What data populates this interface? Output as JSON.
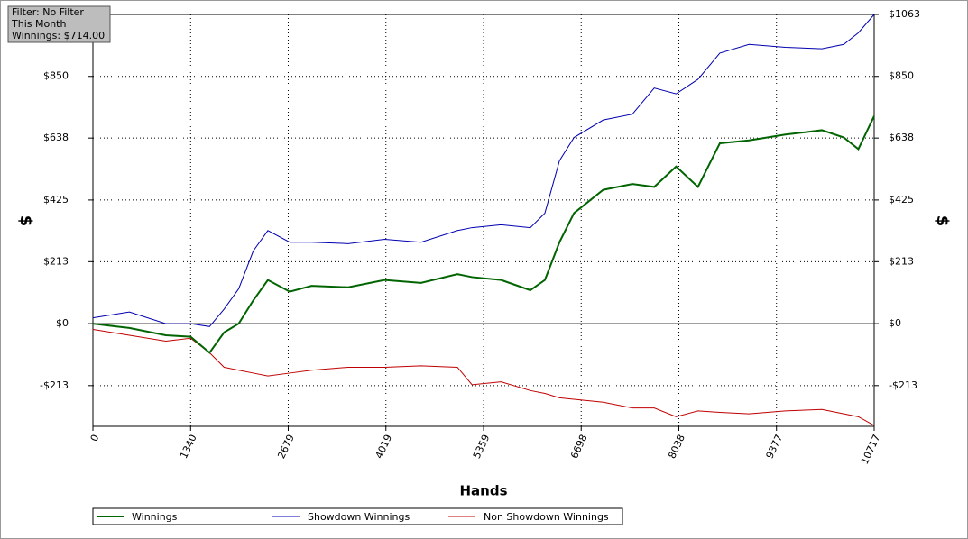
{
  "chart_data": {
    "type": "line",
    "filter_box": [
      "Filter: No Filter",
      "This Month",
      "Winnings: $714.00"
    ],
    "x_label": "Hands",
    "y_label": "$",
    "x": [
      0,
      500,
      1000,
      1340,
      1600,
      1800,
      2000,
      2200,
      2400,
      2700,
      3000,
      3500,
      4000,
      4500,
      5000,
      5200,
      5600,
      6000,
      6200,
      6400,
      6600,
      7000,
      7400,
      7700,
      8000,
      8300,
      8600,
      9000,
      9500,
      10000,
      10300,
      10500,
      10717
    ],
    "series": [
      {
        "name": "Winnings",
        "color": "#006400",
        "width": 2,
        "values": [
          0,
          -15,
          -40,
          -45,
          -100,
          -30,
          0,
          80,
          150,
          110,
          130,
          125,
          150,
          140,
          170,
          160,
          150,
          115,
          150,
          280,
          380,
          460,
          480,
          470,
          540,
          470,
          620,
          630,
          650,
          665,
          640,
          600,
          714
        ]
      },
      {
        "name": "Showdown Winnings",
        "color": "#0000b0",
        "width": 1,
        "values": [
          20,
          40,
          0,
          0,
          -10,
          50,
          120,
          250,
          320,
          280,
          280,
          275,
          290,
          280,
          320,
          330,
          340,
          330,
          380,
          560,
          640,
          700,
          720,
          810,
          790,
          840,
          930,
          960,
          950,
          945,
          960,
          1000,
          1063
        ]
      },
      {
        "name": "Non Showdown Winnings",
        "color": "#c00000",
        "width": 1,
        "values": [
          -20,
          -40,
          -60,
          -50,
          -100,
          -150,
          -160,
          -170,
          -180,
          -170,
          -160,
          -150,
          -150,
          -145,
          -150,
          -210,
          -200,
          -230,
          -240,
          -255,
          -260,
          -270,
          -290,
          -290,
          -320,
          -300,
          -305,
          -310,
          -300,
          -295,
          -310,
          -320,
          -350
        ]
      }
    ],
    "xlim": [
      0,
      10717
    ],
    "xticks": [
      0,
      1340,
      2679,
      4019,
      5359,
      6698,
      8038,
      9377,
      10717
    ],
    "ylim": [
      -353,
      1063
    ],
    "yticks": [
      {
        "value": -213,
        "label": "-$213"
      },
      {
        "value": 0,
        "label": "$0"
      },
      {
        "value": 213,
        "label": "$213"
      },
      {
        "value": 425,
        "label": "$425"
      },
      {
        "value": 638,
        "label": "$638"
      },
      {
        "value": 850,
        "label": "$850"
      },
      {
        "value": 1063,
        "label": "$1063"
      }
    ],
    "grid": true
  }
}
